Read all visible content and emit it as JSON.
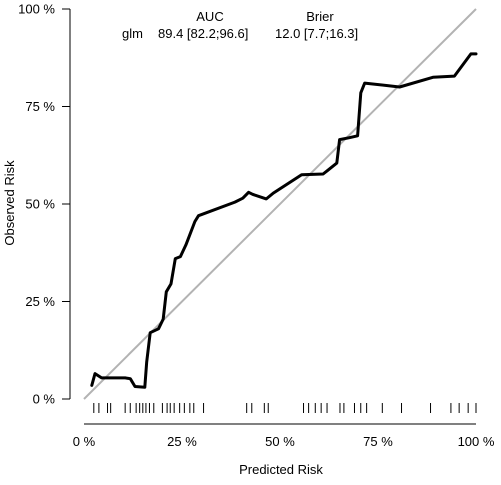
{
  "chart_data": {
    "type": "line",
    "xlabel": "Predicted Risk",
    "ylabel": "Observed Risk",
    "xlim": [
      0,
      100
    ],
    "ylim": [
      0,
      100
    ],
    "x_ticks": [
      {
        "value": 0,
        "label": "0 %"
      },
      {
        "value": 25,
        "label": "25 %"
      },
      {
        "value": 50,
        "label": "50 %"
      },
      {
        "value": 75,
        "label": "75 %"
      },
      {
        "value": 100,
        "label": "100 %"
      }
    ],
    "y_ticks": [
      {
        "value": 0,
        "label": "0 %"
      },
      {
        "value": 25,
        "label": "25 %"
      },
      {
        "value": 50,
        "label": "50 %"
      },
      {
        "value": 75,
        "label": "75 %"
      },
      {
        "value": 100,
        "label": "100 %"
      }
    ],
    "reference_line": {
      "from": [
        0,
        0
      ],
      "to": [
        100,
        100
      ],
      "color": "#b3b3b3"
    },
    "legend": {
      "headers": {
        "auc": "AUC",
        "brier": "Brier"
      },
      "rows": [
        {
          "model": "glm",
          "auc": "89.4 [82.2;96.6]",
          "brier": "12.0 [7.7;16.3]"
        }
      ]
    },
    "series": [
      {
        "color": "#000000",
        "points": [
          [
            2,
            3.5
          ],
          [
            2.8,
            6.5
          ],
          [
            4.5,
            5.4
          ],
          [
            10.5,
            5.4
          ],
          [
            11.8,
            5.2
          ],
          [
            13,
            3.2
          ],
          [
            15.5,
            3
          ],
          [
            16,
            9.5
          ],
          [
            16.9,
            17
          ],
          [
            19,
            18
          ],
          [
            20.2,
            20.5
          ],
          [
            21,
            27.5
          ],
          [
            22.2,
            29.5
          ],
          [
            23.3,
            36
          ],
          [
            24.6,
            36.5
          ],
          [
            26,
            39.5
          ],
          [
            28.3,
            45.5
          ],
          [
            29.2,
            47
          ],
          [
            38.5,
            50.5
          ],
          [
            40.5,
            51.5
          ],
          [
            42,
            53
          ],
          [
            43,
            52.5
          ],
          [
            46.5,
            51.3
          ],
          [
            48.3,
            52.8
          ],
          [
            55.5,
            57.5
          ],
          [
            61,
            57.7
          ],
          [
            62,
            58.5
          ],
          [
            64.5,
            60.5
          ],
          [
            65.2,
            66.5
          ],
          [
            67.7,
            67
          ],
          [
            69.8,
            67.5
          ],
          [
            70.6,
            78.5
          ],
          [
            71.6,
            81
          ],
          [
            80.5,
            80
          ],
          [
            89,
            82.5
          ],
          [
            94.5,
            82.8
          ],
          [
            98.7,
            88.5
          ],
          [
            100,
            88.5
          ]
        ]
      }
    ],
    "rug": [
      2.5,
      3.8,
      6.0,
      6.8,
      10.5,
      11.8,
      13.3,
      14.2,
      15.0,
      15.8,
      16.7,
      17.8,
      20.0,
      21.2,
      22.0,
      23.0,
      24.4,
      25.6,
      27.0,
      28.0,
      30.5,
      41.5,
      42.8,
      46.0,
      47.0,
      56.0,
      57.3,
      59.0,
      60.5,
      62.0,
      65.3,
      66.3,
      69.0,
      70.6,
      72.1,
      76.1,
      81.0,
      88.4,
      93.6,
      95.7,
      98.0,
      100.0
    ]
  }
}
